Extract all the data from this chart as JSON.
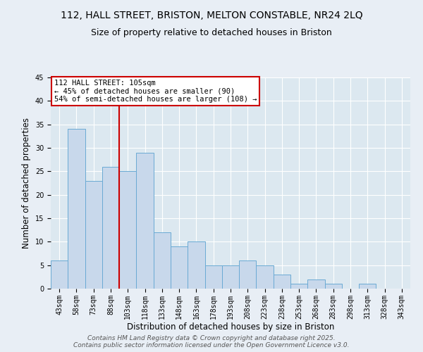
{
  "title1": "112, HALL STREET, BRISTON, MELTON CONSTABLE, NR24 2LQ",
  "title2": "Size of property relative to detached houses in Briston",
  "xlabel": "Distribution of detached houses by size in Briston",
  "ylabel": "Number of detached properties",
  "categories": [
    "43sqm",
    "58sqm",
    "73sqm",
    "88sqm",
    "103sqm",
    "118sqm",
    "133sqm",
    "148sqm",
    "163sqm",
    "178sqm",
    "193sqm",
    "208sqm",
    "223sqm",
    "238sqm",
    "253sqm",
    "268sqm",
    "283sqm",
    "298sqm",
    "313sqm",
    "328sqm",
    "343sqm"
  ],
  "values": [
    6,
    34,
    23,
    26,
    25,
    29,
    12,
    9,
    10,
    5,
    5,
    6,
    5,
    3,
    1,
    2,
    1,
    0,
    1,
    0,
    0
  ],
  "bar_color": "#c8d8eb",
  "bar_edge_color": "#6aaad4",
  "vline_x": 3.5,
  "vline_color": "#cc0000",
  "annotation_text": "112 HALL STREET: 105sqm\n← 45% of detached houses are smaller (90)\n54% of semi-detached houses are larger (108) →",
  "annotation_box_color": "#ffffff",
  "annotation_box_edge_color": "#cc0000",
  "ylim": [
    0,
    45
  ],
  "yticks": [
    0,
    5,
    10,
    15,
    20,
    25,
    30,
    35,
    40,
    45
  ],
  "plot_bg_color": "#dce8f0",
  "fig_bg_color": "#e8eef5",
  "grid_color": "#ffffff",
  "footer_line1": "Contains HM Land Registry data © Crown copyright and database right 2025.",
  "footer_line2": "Contains public sector information licensed under the Open Government Licence v3.0.",
  "title_fontsize": 10,
  "subtitle_fontsize": 9,
  "axis_label_fontsize": 8.5,
  "tick_fontsize": 7,
  "annotation_fontsize": 7.5,
  "footer_fontsize": 6.5
}
